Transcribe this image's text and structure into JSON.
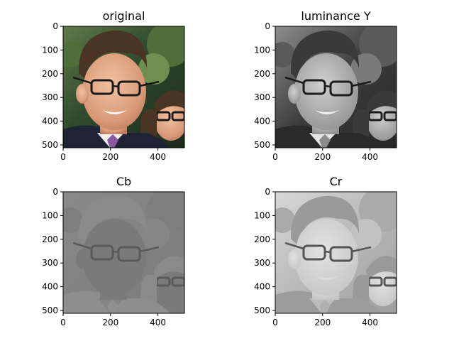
{
  "figure": {
    "background": "#ffffff",
    "axis_color": "#000000"
  },
  "panels": [
    {
      "title": "original",
      "image": "photo of two young men (selfie), color",
      "colormap": "color"
    },
    {
      "title": "luminance Y",
      "image": "photo of two young men (selfie), luminance channel",
      "colormap": "gray"
    },
    {
      "title": "Cb",
      "image": "photo of two young men (selfie), Cb chroma channel",
      "colormap": "gray"
    },
    {
      "title": "Cr",
      "image": "photo of two young men (selfie), Cr chroma channel",
      "colormap": "gray"
    }
  ],
  "chart_data": [
    {
      "type": "heatmap",
      "title": "original",
      "x": {
        "ticks": [
          0,
          200,
          400
        ],
        "tick_labels": [
          "0",
          "200",
          "400"
        ],
        "range": [
          0,
          512
        ]
      },
      "y": {
        "ticks": [
          0,
          100,
          200,
          300,
          400,
          500
        ],
        "tick_labels": [
          "0",
          "100",
          "200",
          "300",
          "400",
          "500"
        ],
        "range": [
          0,
          512
        ],
        "inverted": true
      },
      "grid": false
    },
    {
      "type": "heatmap",
      "title": "luminance Y",
      "x": {
        "ticks": [
          0,
          200,
          400
        ],
        "tick_labels": [
          "0",
          "200",
          "400"
        ],
        "range": [
          0,
          512
        ]
      },
      "y": {
        "ticks": [
          0,
          100,
          200,
          300,
          400,
          500
        ],
        "tick_labels": [
          "0",
          "100",
          "200",
          "300",
          "400",
          "500"
        ],
        "range": [
          0,
          512
        ],
        "inverted": true
      },
      "grid": false
    },
    {
      "type": "heatmap",
      "title": "Cb",
      "x": {
        "ticks": [
          0,
          200,
          400
        ],
        "tick_labels": [
          "0",
          "200",
          "400"
        ],
        "range": [
          0,
          512
        ]
      },
      "y": {
        "ticks": [
          0,
          100,
          200,
          300,
          400,
          500
        ],
        "tick_labels": [
          "0",
          "100",
          "200",
          "300",
          "400",
          "500"
        ],
        "range": [
          0,
          512
        ],
        "inverted": true
      },
      "grid": false
    },
    {
      "type": "heatmap",
      "title": "Cr",
      "x": {
        "ticks": [
          0,
          200,
          400
        ],
        "tick_labels": [
          "0",
          "200",
          "400"
        ],
        "range": [
          0,
          512
        ]
      },
      "y": {
        "ticks": [
          0,
          100,
          200,
          300,
          400,
          500
        ],
        "tick_labels": [
          "0",
          "100",
          "200",
          "300",
          "400",
          "500"
        ],
        "range": [
          0,
          512
        ],
        "inverted": true
      },
      "grid": false
    }
  ]
}
